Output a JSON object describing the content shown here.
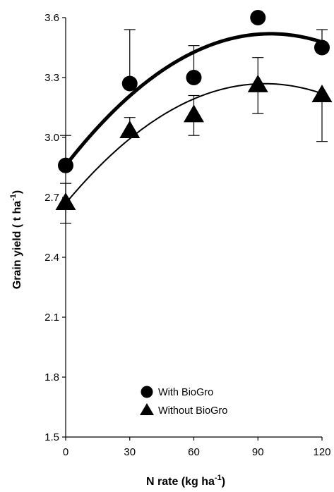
{
  "chart_data": {
    "type": "scatter",
    "title": "",
    "xlabel": "N rate (kg ha",
    "xlabel_sup": "-1",
    "xlabel_end": ")",
    "ylabel": "Grain yield ( t ha",
    "ylabel_sup": "-1",
    "ylabel_end": ")",
    "xlim": [
      0,
      120
    ],
    "ylim": [
      1.5,
      3.6
    ],
    "x_ticks": [
      0,
      30,
      60,
      90,
      120
    ],
    "x_tick_labels": [
      "0",
      "30",
      "60",
      "90",
      "120"
    ],
    "y_ticks": [
      1.5,
      1.8,
      2.1,
      2.4,
      2.7,
      3.0,
      3.3,
      3.6
    ],
    "y_tick_labels": [
      "1.5",
      "1.8",
      "2.1",
      "2.4",
      "2.7",
      "3.0",
      "3.3",
      "3.6"
    ],
    "grid": false,
    "legend_position": "bottom-center",
    "series": [
      {
        "name": "With BioGro",
        "marker": "circle",
        "x": [
          0,
          30,
          60,
          90,
          120
        ],
        "y": [
          2.86,
          3.27,
          3.3,
          3.6,
          3.45
        ],
        "err_upper": [
          0.15,
          0.27,
          0.16,
          0.0,
          0.09
        ],
        "err_lower": [
          0.0,
          0.0,
          0.0,
          0.0,
          0.0
        ],
        "fit": {
          "a": 2.86,
          "b": 0.01375,
          "c": -7.17e-05,
          "x_range": [
            0,
            120
          ],
          "line_width": 5
        }
      },
      {
        "name": "Without BioGro",
        "marker": "triangle",
        "x": [
          0,
          30,
          60,
          90,
          120
        ],
        "y": [
          2.67,
          3.03,
          3.11,
          3.26,
          3.21
        ],
        "err_upper": [
          0.1,
          0.07,
          0.1,
          0.14,
          0.0
        ],
        "err_lower": [
          0.1,
          0.0,
          0.1,
          0.14,
          0.23
        ],
        "fit": {
          "a": 2.67,
          "b": 0.01285,
          "c": -6.89e-05,
          "x_range": [
            0,
            120
          ],
          "line_width": 2
        }
      }
    ]
  }
}
